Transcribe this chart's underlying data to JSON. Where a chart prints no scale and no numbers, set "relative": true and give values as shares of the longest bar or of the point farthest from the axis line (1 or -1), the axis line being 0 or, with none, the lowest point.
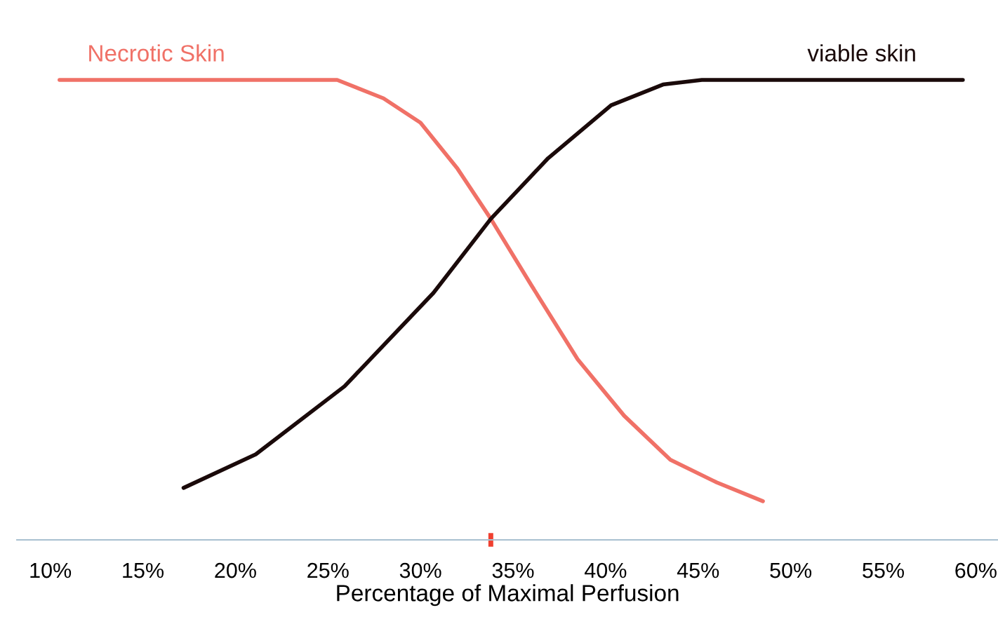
{
  "chart_data": {
    "type": "line",
    "relative": true,
    "xlabel": "Percentage of Maximal Perfusion",
    "xlim": [
      8.2,
      61.2
    ],
    "xticks": [
      {
        "value": 10,
        "label": "10%"
      },
      {
        "value": 15,
        "label": "15%"
      },
      {
        "value": 20,
        "label": "20%"
      },
      {
        "value": 25,
        "label": "25%"
      },
      {
        "value": 30,
        "label": "30%"
      },
      {
        "value": 33.8,
        "label": null
      },
      {
        "value": 35,
        "label": "35%"
      },
      {
        "value": 40,
        "label": "40%"
      },
      {
        "value": 45,
        "label": "45%"
      },
      {
        "value": 50,
        "label": "50%"
      },
      {
        "value": 55,
        "label": "55%"
      },
      {
        "value": 60,
        "label": "60%"
      }
    ],
    "series": [
      {
        "name": "Necrotic Skin",
        "color": "#f07167",
        "x": [
          10.5,
          25.5,
          28,
          30,
          32,
          33.8,
          36,
          38.5,
          41,
          43.5,
          46,
          48.5
        ],
        "values": [
          1,
          1,
          0.96,
          0.907,
          0.807,
          0.698,
          0.553,
          0.392,
          0.27,
          0.174,
          0.125,
          0.084
        ]
      },
      {
        "name": "viable skin",
        "color": "#1a0a0a",
        "x": [
          17.2,
          21.1,
          25.9,
          30.7,
          33.8,
          36.9,
          40.3,
          43.1,
          45.2,
          59.3
        ],
        "values": [
          0.113,
          0.186,
          0.334,
          0.537,
          0.698,
          0.83,
          0.945,
          0.99,
          1,
          1
        ]
      }
    ],
    "grid": false,
    "legend": false
  }
}
